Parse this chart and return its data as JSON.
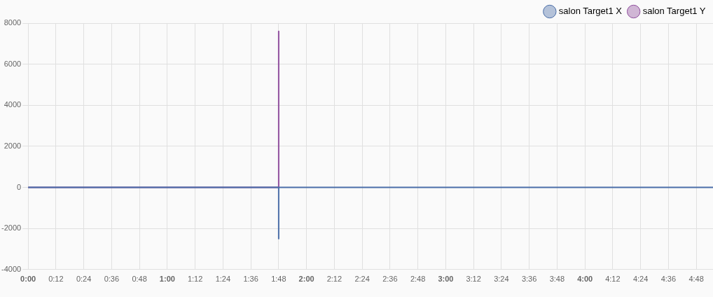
{
  "chart_data": {
    "type": "line",
    "x": [
      0,
      1.8,
      1.8,
      1.8,
      4.92
    ],
    "series": [
      {
        "name": "salon Target1 X",
        "color": "#4b6ea8",
        "values": [
          0,
          0,
          -2500,
          0,
          0
        ]
      },
      {
        "name": "salon Target1 Y",
        "color": "#904f9e",
        "values": [
          0,
          0,
          7600,
          0,
          null
        ]
      }
    ],
    "xlim": [
      0,
      4.92
    ],
    "xticks": [
      {
        "value": 0,
        "label": "0:00"
      },
      {
        "value": 0.2,
        "label": "0:12"
      },
      {
        "value": 0.4,
        "label": "0:24"
      },
      {
        "value": 0.6,
        "label": "0:36"
      },
      {
        "value": 0.8,
        "label": "0:48"
      },
      {
        "value": 1,
        "label": "1:00"
      },
      {
        "value": 1.2,
        "label": "1:12"
      },
      {
        "value": 1.4,
        "label": "1:24"
      },
      {
        "value": 1.6,
        "label": "1:36"
      },
      {
        "value": 1.8,
        "label": "1:48"
      },
      {
        "value": 2,
        "label": "2:00"
      },
      {
        "value": 2.2,
        "label": "2:12"
      },
      {
        "value": 2.4,
        "label": "2:24"
      },
      {
        "value": 2.6,
        "label": "2:36"
      },
      {
        "value": 2.8,
        "label": "2:48"
      },
      {
        "value": 3,
        "label": "3:00"
      },
      {
        "value": 3.2,
        "label": "3:12"
      },
      {
        "value": 3.4,
        "label": "3:24"
      },
      {
        "value": 3.6,
        "label": "3:36"
      },
      {
        "value": 3.8,
        "label": "3:48"
      },
      {
        "value": 4,
        "label": "4:00"
      },
      {
        "value": 4.2,
        "label": "4:12"
      },
      {
        "value": 4.4,
        "label": "4:24"
      },
      {
        "value": 4.6,
        "label": "4:36"
      },
      {
        "value": 4.8,
        "label": "4:48"
      }
    ],
    "ylim": [
      -4000,
      8000
    ],
    "yticks": [
      -4000,
      -2000,
      0,
      2000,
      4000,
      6000,
      8000
    ],
    "grid": true,
    "legend": "top right",
    "marker": "none",
    "line_style": "solid"
  }
}
